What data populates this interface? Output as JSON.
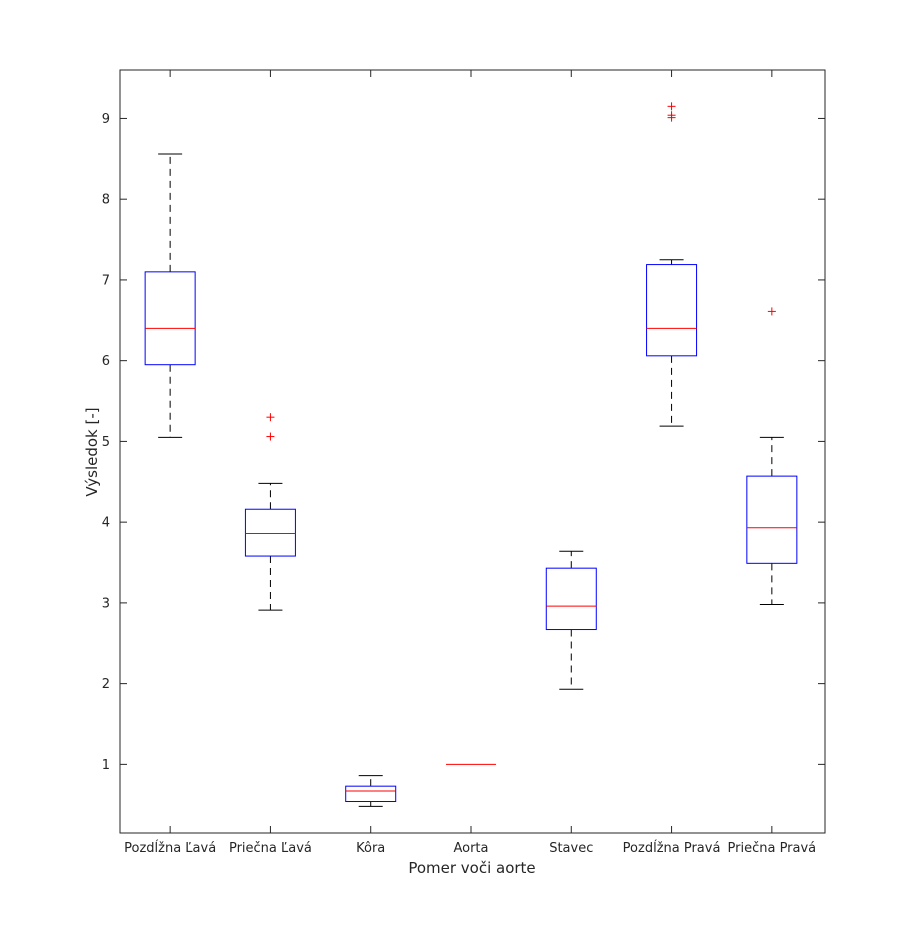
{
  "chart_data": {
    "type": "box",
    "title": "",
    "xlabel": "Pomer voči aorte",
    "ylabel": "Výsledok [-]",
    "ylim": [
      0.15,
      9.6
    ],
    "yticks": [
      1,
      2,
      3,
      4,
      5,
      6,
      7,
      8,
      9
    ],
    "grid": false,
    "legend": "none",
    "colors": {
      "box": "#0000ff",
      "median": "#ff0000",
      "whisker": "#000000",
      "outlier": "#ff0000",
      "axis": "#262626"
    },
    "categories": [
      "Pozdĺžna Ľavá",
      "Priečna Ľavá",
      "Kôra",
      "Aorta",
      "Stavec",
      "Pozdĺžna Pravá",
      "Priečna Pravá"
    ],
    "boxes": [
      {
        "category": "Pozdĺžna Ľavá",
        "whisker_low": 5.05,
        "q1": 5.95,
        "median": 6.4,
        "q3": 7.1,
        "whisker_high": 8.56,
        "outliers": []
      },
      {
        "category": "Priečna Ľavá",
        "whisker_low": 2.91,
        "q1": 3.58,
        "median": 3.86,
        "q3": 4.16,
        "whisker_high": 4.48,
        "outliers": [
          5.06,
          5.3
        ]
      },
      {
        "category": "Kôra",
        "whisker_low": 0.48,
        "q1": 0.54,
        "median": 0.67,
        "q3": 0.73,
        "whisker_high": 0.86,
        "outliers": []
      },
      {
        "category": "Aorta",
        "whisker_low": 1.0,
        "q1": 1.0,
        "median": 1.0,
        "q3": 1.0,
        "whisker_high": 1.0,
        "outliers": []
      },
      {
        "category": "Stavec",
        "whisker_low": 1.93,
        "q1": 2.67,
        "median": 2.96,
        "q3": 3.43,
        "whisker_high": 3.64,
        "outliers": []
      },
      {
        "category": "Pozdĺžna Pravá",
        "whisker_low": 5.19,
        "q1": 6.06,
        "median": 6.4,
        "q3": 7.19,
        "whisker_high": 7.25,
        "outliers": [
          9.01,
          9.04,
          9.15
        ]
      },
      {
        "category": "Priečna Pravá",
        "whisker_low": 2.98,
        "q1": 3.49,
        "median": 3.93,
        "q3": 4.57,
        "whisker_high": 5.05,
        "outliers": [
          6.61
        ]
      }
    ]
  }
}
